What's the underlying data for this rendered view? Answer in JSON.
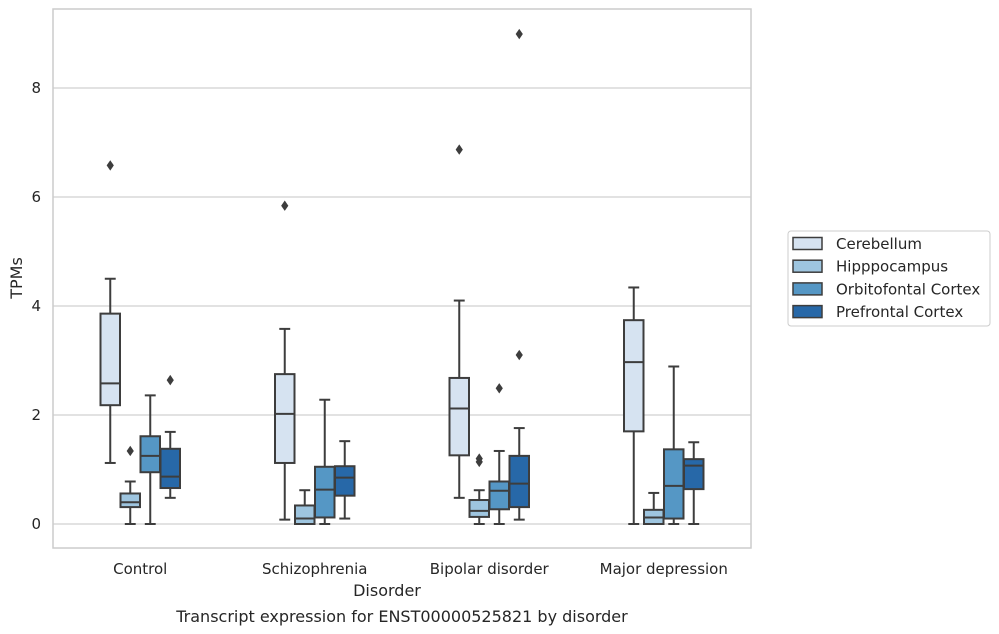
{
  "caption": "Transcript expression for ENST00000525821 by disorder",
  "chart_data": {
    "type": "box",
    "xlabel": "Disorder",
    "ylabel": "TPMs",
    "ylim": [
      -0.45,
      9.55
    ],
    "yticks": [
      0,
      2,
      4,
      6,
      8
    ],
    "grid": "horizontal",
    "legend_position": "right",
    "categories": [
      "Control",
      "Schizophrenia",
      "Bipolar disorder",
      "Major depression"
    ],
    "series": [
      {
        "name": "Cerebellum",
        "color": "#d6e3f1",
        "boxes": [
          {
            "whislo": 1.12,
            "q1": 2.18,
            "med": 2.58,
            "q3": 3.86,
            "whishi": 4.5,
            "fliers": [
              6.58
            ]
          },
          {
            "whislo": 0.08,
            "q1": 1.12,
            "med": 2.02,
            "q3": 2.75,
            "whishi": 3.58,
            "fliers": [
              5.84
            ]
          },
          {
            "whislo": 0.48,
            "q1": 1.26,
            "med": 2.12,
            "q3": 2.68,
            "whishi": 4.1,
            "fliers": [
              6.87
            ]
          },
          {
            "whislo": 0.0,
            "q1": 1.7,
            "med": 2.97,
            "q3": 3.74,
            "whishi": 4.34,
            "fliers": []
          }
        ]
      },
      {
        "name": "Hipppocampus",
        "color": "#9ec5df",
        "boxes": [
          {
            "whislo": 0.0,
            "q1": 0.31,
            "med": 0.4,
            "q3": 0.56,
            "whishi": 0.78,
            "fliers": [
              1.34
            ]
          },
          {
            "whislo": 0.0,
            "q1": 0.0,
            "med": 0.1,
            "q3": 0.34,
            "whishi": 0.62,
            "fliers": []
          },
          {
            "whislo": 0.0,
            "q1": 0.13,
            "med": 0.24,
            "q3": 0.44,
            "whishi": 0.62,
            "fliers": [
              1.14,
              1.2
            ]
          },
          {
            "whislo": 0.0,
            "q1": 0.0,
            "med": 0.12,
            "q3": 0.26,
            "whishi": 0.57,
            "fliers": []
          }
        ]
      },
      {
        "name": "Orbitofontal Cortex",
        "color": "#5597c5",
        "boxes": [
          {
            "whislo": 0.0,
            "q1": 0.95,
            "med": 1.25,
            "q3": 1.61,
            "whishi": 2.36,
            "fliers": []
          },
          {
            "whislo": 0.0,
            "q1": 0.12,
            "med": 0.63,
            "q3": 1.05,
            "whishi": 2.28,
            "fliers": []
          },
          {
            "whislo": 0.0,
            "q1": 0.27,
            "med": 0.61,
            "q3": 0.78,
            "whishi": 1.34,
            "fliers": [
              2.49
            ]
          },
          {
            "whislo": 0.0,
            "q1": 0.1,
            "med": 0.7,
            "q3": 1.37,
            "whishi": 2.89,
            "fliers": []
          }
        ]
      },
      {
        "name": "Prefrontal Cortex",
        "color": "#2768a8",
        "boxes": [
          {
            "whislo": 0.48,
            "q1": 0.66,
            "med": 0.87,
            "q3": 1.38,
            "whishi": 1.69,
            "fliers": [
              2.64
            ]
          },
          {
            "whislo": 0.1,
            "q1": 0.52,
            "med": 0.85,
            "q3": 1.06,
            "whishi": 1.52,
            "fliers": []
          },
          {
            "whislo": 0.08,
            "q1": 0.31,
            "med": 0.74,
            "q3": 1.25,
            "whishi": 1.76,
            "fliers": [
              3.1,
              8.99
            ]
          },
          {
            "whislo": 0.0,
            "q1": 0.64,
            "med": 1.07,
            "q3": 1.19,
            "whishi": 1.5,
            "fliers": []
          }
        ]
      }
    ]
  }
}
